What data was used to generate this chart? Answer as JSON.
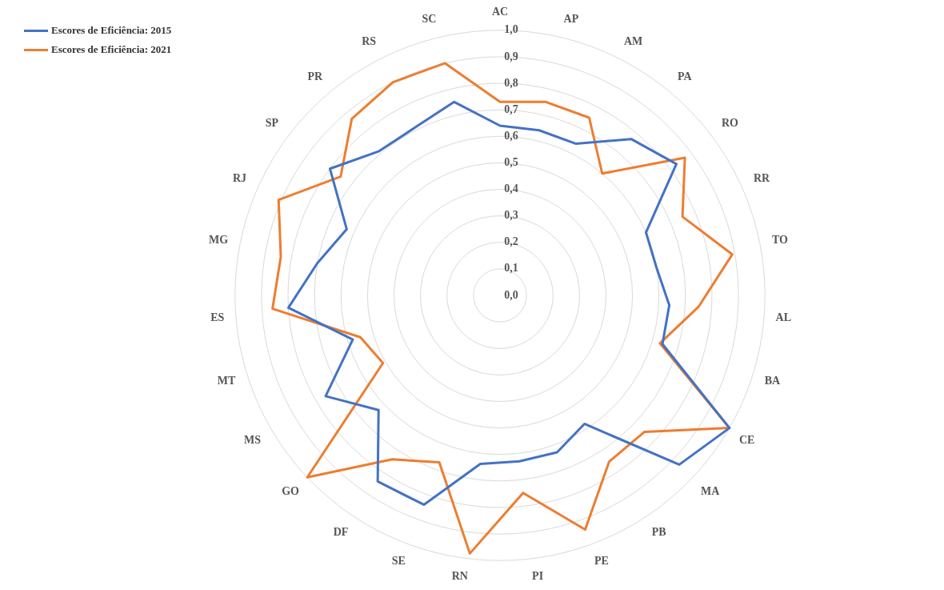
{
  "chart_data": {
    "type": "radar",
    "categories": [
      "AC",
      "AP",
      "AM",
      "PA",
      "RO",
      "RR",
      "TO",
      "AL",
      "BA",
      "CE",
      "MA",
      "PB",
      "PE",
      "PI",
      "RN",
      "SE",
      "DF",
      "GO",
      "MS",
      "MT",
      "ES",
      "MG",
      "RJ",
      "SP",
      "PR",
      "RS",
      "SC"
    ],
    "series": [
      {
        "name": "Escores de Eficiência: 2015",
        "color": "#4472c4",
        "values": [
          0.64,
          0.64,
          0.64,
          0.77,
          0.83,
          0.6,
          0.6,
          0.64,
          0.64,
          1.0,
          0.93,
          0.58,
          0.63,
          0.63,
          0.64,
          0.84,
          0.84,
          0.63,
          0.76,
          0.58,
          0.8,
          0.7,
          0.63,
          0.8,
          0.71,
          0.71,
          0.75
        ]
      },
      {
        "name": "Escores de Eficiência: 2021",
        "color": "#ed7d31",
        "values": [
          0.73,
          0.75,
          0.75,
          0.6,
          0.87,
          0.75,
          0.89,
          0.75,
          0.63,
          1.0,
          0.75,
          0.75,
          0.94,
          0.75,
          0.98,
          0.67,
          0.74,
          1.0,
          0.51,
          0.55,
          0.86,
          0.84,
          0.91,
          0.75,
          0.87,
          0.9,
          0.9
        ]
      }
    ],
    "ylim": [
      0,
      1
    ],
    "yticks": [
      {
        "value": 0,
        "label": "0,0"
      },
      {
        "value": 0.1,
        "label": "0,1"
      },
      {
        "value": 0.2,
        "label": "0,2"
      },
      {
        "value": 0.3,
        "label": "0,3"
      },
      {
        "value": 0.4,
        "label": "0,4"
      },
      {
        "value": 0.5,
        "label": "0,5"
      },
      {
        "value": 0.6,
        "label": "0,6"
      },
      {
        "value": 0.7,
        "label": "0,7"
      },
      {
        "value": 0.8,
        "label": "0,8"
      },
      {
        "value": 0.9,
        "label": "0,9"
      },
      {
        "value": 1.0,
        "label": "1,0"
      }
    ],
    "grid": true,
    "legend": "top left",
    "marker": "none"
  }
}
